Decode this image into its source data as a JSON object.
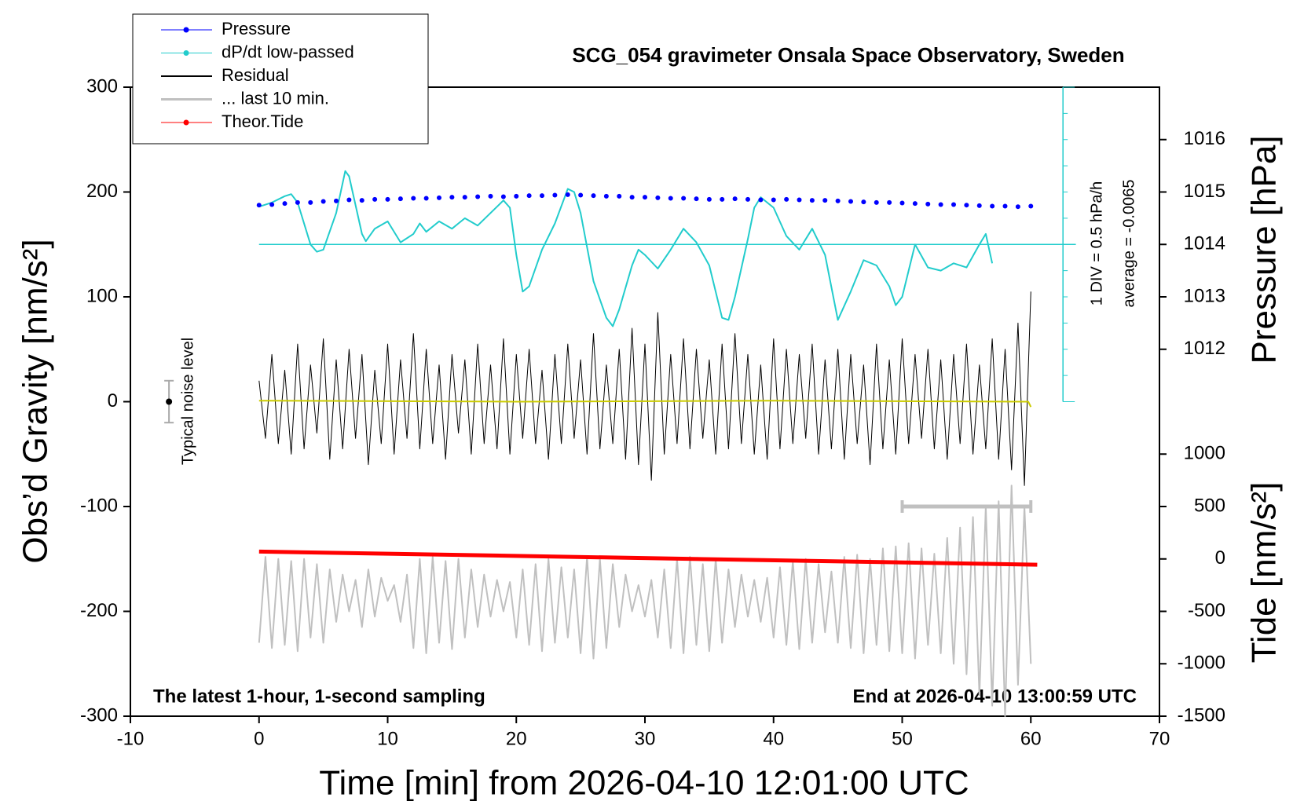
{
  "chart_data": {
    "type": "line",
    "title": "SCG_054 gravimeter Onsala Space Observatory, Sweden",
    "xlabel": "Time [min] from 2026-04-10 12:01:00 UTC",
    "ylabel": "Obs’d Gravity [nm/s²]",
    "y2label": "Pressure [hPa]",
    "y3label": "Tide [nm/s²]",
    "annotations": {
      "bottom_left": "The latest 1-hour, 1-second sampling",
      "bottom_right": "End at 2026-04-10 13:00:59 UTC",
      "div": "1 DIV = 0.5 hPa/h",
      "average": "average = -0.0065",
      "noise": "Typical noise level"
    },
    "xlim": [
      -10,
      70
    ],
    "xticks": [
      -10,
      0,
      10,
      20,
      30,
      40,
      50,
      60,
      70
    ],
    "ylim": [
      -300,
      300
    ],
    "yticks": [
      -300,
      -200,
      -100,
      0,
      100,
      200,
      300
    ],
    "y2lim": [
      1005,
      1017
    ],
    "y2ticks": [
      1012,
      1013,
      1014,
      1015,
      1016
    ],
    "y3lim": [
      -1500,
      4500
    ],
    "y3ticks": [
      -1500,
      -1000,
      -500,
      0,
      500,
      1000
    ],
    "x": [
      0,
      0.5,
      1,
      1.5,
      2,
      2.5,
      3,
      3.5,
      4,
      4.5,
      5,
      5.5,
      6,
      6.5,
      7,
      7.5,
      8,
      8.5,
      9,
      9.5,
      10,
      10.5,
      11,
      11.5,
      12,
      12.5,
      13,
      13.5,
      14,
      14.5,
      15,
      15.5,
      16,
      16.5,
      17,
      17.5,
      18,
      18.5,
      19,
      19.5,
      20,
      20.5,
      21,
      21.5,
      22,
      22.5,
      23,
      23.5,
      24,
      24.5,
      25,
      25.5,
      26,
      26.5,
      27,
      27.5,
      28,
      28.5,
      29,
      29.5,
      30,
      30.5,
      31,
      31.5,
      32,
      32.5,
      33,
      33.5,
      34,
      34.5,
      35,
      35.5,
      36,
      36.5,
      37,
      37.5,
      38,
      38.5,
      39,
      39.5,
      40,
      40.5,
      41,
      41.5,
      42,
      42.5,
      43,
      43.5,
      44,
      44.5,
      45,
      45.5,
      46,
      46.5,
      47,
      47.5,
      48,
      48.5,
      49,
      49.5,
      50,
      50.5,
      51,
      51.5,
      52,
      52.5,
      53,
      53.5,
      54,
      54.5,
      55,
      55.5,
      56,
      56.5,
      57,
      57.5,
      58,
      58.5,
      59,
      59.5,
      60
    ],
    "series": [
      {
        "name": "Pressure",
        "color": "#0000ff",
        "axis": "y2",
        "style": "dots",
        "x": [
          0,
          1,
          2,
          3,
          4,
          5,
          6,
          7,
          8,
          9,
          10,
          11,
          12,
          13,
          14,
          15,
          16,
          17,
          18,
          19,
          20,
          21,
          22,
          23,
          24,
          25,
          26,
          27,
          28,
          29,
          30,
          31,
          32,
          33,
          34,
          35,
          36,
          37,
          38,
          39,
          40,
          41,
          42,
          43,
          44,
          45,
          46,
          47,
          48,
          49,
          50,
          51,
          52,
          53,
          54,
          55,
          56,
          57,
          58,
          59,
          60
        ],
        "values": [
          1014.75,
          1014.76,
          1014.78,
          1014.8,
          1014.8,
          1014.82,
          1014.83,
          1014.85,
          1014.84,
          1014.86,
          1014.86,
          1014.87,
          1014.88,
          1014.88,
          1014.89,
          1014.9,
          1014.9,
          1014.91,
          1014.92,
          1014.91,
          1014.92,
          1014.93,
          1014.93,
          1014.94,
          1014.95,
          1014.94,
          1014.93,
          1014.92,
          1014.92,
          1014.9,
          1014.9,
          1014.89,
          1014.88,
          1014.88,
          1014.87,
          1014.86,
          1014.86,
          1014.87,
          1014.86,
          1014.85,
          1014.85,
          1014.86,
          1014.85,
          1014.84,
          1014.84,
          1014.83,
          1014.82,
          1014.81,
          1014.8,
          1014.8,
          1014.79,
          1014.78,
          1014.77,
          1014.76,
          1014.76,
          1014.75,
          1014.74,
          1014.73,
          1014.73,
          1014.72,
          1014.73
        ]
      },
      {
        "name": "dP/dt low-passed",
        "color": "#22cccc",
        "style": "line",
        "x": [
          0,
          1,
          2,
          2.5,
          3,
          4,
          4.5,
          5,
          6,
          6.7,
          7,
          8,
          8.3,
          9,
          10,
          11,
          12,
          12.5,
          13,
          14,
          15,
          15.5,
          16,
          17,
          18,
          19,
          19.5,
          20,
          20.5,
          21,
          22,
          23,
          24,
          24.5,
          25,
          26,
          27,
          27.5,
          28,
          29,
          29.5,
          30,
          31,
          32,
          33,
          34,
          35,
          36,
          36.5,
          37,
          38,
          38.5,
          39,
          40,
          41,
          42,
          43,
          44,
          45,
          46,
          47,
          48,
          49,
          49.5,
          50,
          51,
          52,
          53,
          54,
          55,
          56,
          56.5,
          57
        ],
        "values": [
          186,
          190,
          196,
          198,
          190,
          150,
          143,
          145,
          180,
          220,
          215,
          160,
          153,
          165,
          172,
          152,
          160,
          170,
          162,
          172,
          165,
          170,
          175,
          168,
          180,
          192,
          185,
          140,
          105,
          110,
          145,
          170,
          203,
          200,
          180,
          115,
          80,
          72,
          88,
          130,
          145,
          140,
          127,
          145,
          165,
          152,
          130,
          80,
          78,
          100,
          155,
          185,
          195,
          185,
          158,
          145,
          165,
          140,
          78,
          105,
          135,
          130,
          110,
          92,
          100,
          150,
          128,
          125,
          132,
          128,
          150,
          160,
          132
        ]
      },
      {
        "name": "Residual",
        "color": "#000000",
        "style": "line",
        "values": [
          20,
          -35,
          45,
          -40,
          30,
          -50,
          55,
          -45,
          35,
          -30,
          60,
          -55,
          40,
          -45,
          50,
          -35,
          45,
          -60,
          30,
          -40,
          55,
          -50,
          40,
          -35,
          65,
          -45,
          50,
          -40,
          35,
          -55,
          45,
          -30,
          40,
          -50,
          55,
          -40,
          35,
          -45,
          60,
          -50,
          45,
          -35,
          50,
          -40,
          30,
          -55,
          45,
          -40,
          55,
          -35,
          40,
          -50,
          65,
          -45,
          35,
          -40,
          50,
          -55,
          70,
          -60,
          55,
          -75,
          85,
          -50,
          45,
          -40,
          60,
          -45,
          50,
          -35,
          40,
          -50,
          55,
          -45,
          65,
          -40,
          45,
          -50,
          35,
          -55,
          60,
          -45,
          50,
          -40,
          45,
          -35,
          55,
          -50,
          40,
          -45,
          50,
          -55,
          45,
          -40,
          35,
          -60,
          55,
          -45,
          40,
          -50,
          60,
          -40,
          45,
          -35,
          50,
          -45,
          40,
          -55,
          45,
          -40,
          55,
          -50,
          35,
          -45,
          60,
          -55,
          50,
          -65,
          75,
          -80,
          105
        ]
      },
      {
        "name": "... last 10 min.",
        "color": "#c0c0c0",
        "style": "line",
        "values": [
          -230,
          -148,
          -235,
          -150,
          -232,
          -152,
          -238,
          -150,
          -225,
          -155,
          -230,
          -160,
          -210,
          -165,
          -200,
          -170,
          -215,
          -160,
          -205,
          -168,
          -190,
          -175,
          -210,
          -165,
          -235,
          -150,
          -240,
          -148,
          -230,
          -152,
          -236,
          -150,
          -225,
          -160,
          -215,
          -165,
          -205,
          -170,
          -200,
          -172,
          -225,
          -160,
          -232,
          -155,
          -238,
          -150,
          -230,
          -158,
          -225,
          -160,
          -240,
          -148,
          -245,
          -150,
          -235,
          -155,
          -215,
          -165,
          -200,
          -175,
          -205,
          -170,
          -225,
          -160,
          -235,
          -150,
          -240,
          -148,
          -232,
          -155,
          -238,
          -150,
          -230,
          -160,
          -215,
          -165,
          -205,
          -170,
          -210,
          -168,
          -225,
          -158,
          -232,
          -152,
          -236,
          -150,
          -230,
          -155,
          -220,
          -162,
          -230,
          -148,
          -235,
          -146,
          -240,
          -150,
          -232,
          -140,
          -238,
          -138,
          -240,
          -135,
          -245,
          -140,
          -232,
          -145,
          -240,
          -130,
          -250,
          -120,
          -260,
          -110,
          -280,
          -100,
          -290,
          -95,
          -300,
          -80,
          -270,
          -100,
          -250
        ]
      },
      {
        "name": "Theor.Tide",
        "color": "#ff0000",
        "axis": "y3",
        "style": "line",
        "x": [
          0,
          60.5
        ],
        "values": [
          70,
          -55
        ]
      },
      {
        "color": "#cccc00",
        "style": "line",
        "x": [
          0,
          20,
          40,
          59.8,
          60
        ],
        "values": [
          1,
          0,
          1,
          0,
          -5
        ]
      }
    ],
    "noise_bar": {
      "x": -7,
      "value": 0,
      "error": 20
    },
    "last10_bar": {
      "x": [
        50,
        60
      ],
      "value": -100
    }
  }
}
